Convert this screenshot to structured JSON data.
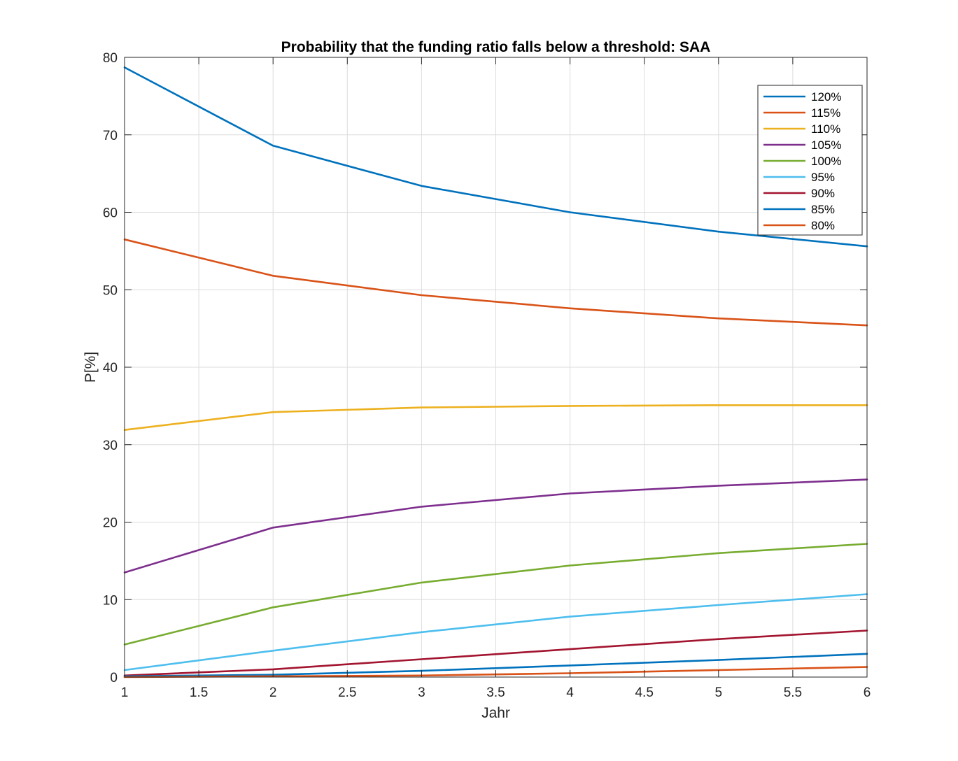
{
  "chart_data": {
    "type": "line",
    "title": "Probability that the funding ratio falls below a threshold: SAA",
    "xlabel": "Jahr",
    "ylabel": "P[%]",
    "xlim": [
      1,
      6
    ],
    "ylim": [
      0,
      80
    ],
    "xticks": [
      1,
      1.5,
      2,
      2.5,
      3,
      3.5,
      4,
      4.5,
      5,
      5.5,
      6
    ],
    "xtick_labels": [
      "1",
      "1.5",
      "2",
      "2.5",
      "3",
      "3.5",
      "4",
      "4.5",
      "5",
      "5.5",
      "6"
    ],
    "yticks": [
      0,
      10,
      20,
      30,
      40,
      50,
      60,
      70,
      80
    ],
    "ytick_labels": [
      "0",
      "10",
      "20",
      "30",
      "40",
      "50",
      "60",
      "70",
      "80"
    ],
    "grid": true,
    "legend_position": "top-right",
    "x": [
      1,
      2,
      3,
      4,
      5,
      6
    ],
    "series": [
      {
        "name": "120%",
        "color": "#0072BD",
        "values": [
          78.7,
          68.6,
          63.4,
          60.0,
          57.5,
          55.6
        ]
      },
      {
        "name": "115%",
        "color": "#D95319",
        "values": [
          56.5,
          51.8,
          49.3,
          47.6,
          46.3,
          45.4
        ]
      },
      {
        "name": "110%",
        "color": "#EDB120",
        "values": [
          31.9,
          34.2,
          34.8,
          35.0,
          35.1,
          35.1
        ]
      },
      {
        "name": "105%",
        "color": "#7E2F8E",
        "values": [
          13.5,
          19.3,
          22.0,
          23.7,
          24.7,
          25.5
        ]
      },
      {
        "name": "100%",
        "color": "#77AC30",
        "values": [
          4.2,
          9.0,
          12.2,
          14.4,
          16.0,
          17.2
        ]
      },
      {
        "name": "95%",
        "color": "#4DBEEE",
        "values": [
          0.9,
          3.4,
          5.8,
          7.8,
          9.3,
          10.7
        ]
      },
      {
        "name": "90%",
        "color": "#A2142F",
        "values": [
          0.2,
          1.0,
          2.3,
          3.6,
          4.9,
          6.0
        ]
      },
      {
        "name": "85%",
        "color": "#0072BD",
        "values": [
          0.1,
          0.3,
          0.8,
          1.5,
          2.2,
          3.0
        ]
      },
      {
        "name": "80%",
        "color": "#D95319",
        "values": [
          0.0,
          0.1,
          0.2,
          0.5,
          0.9,
          1.3
        ]
      }
    ]
  }
}
